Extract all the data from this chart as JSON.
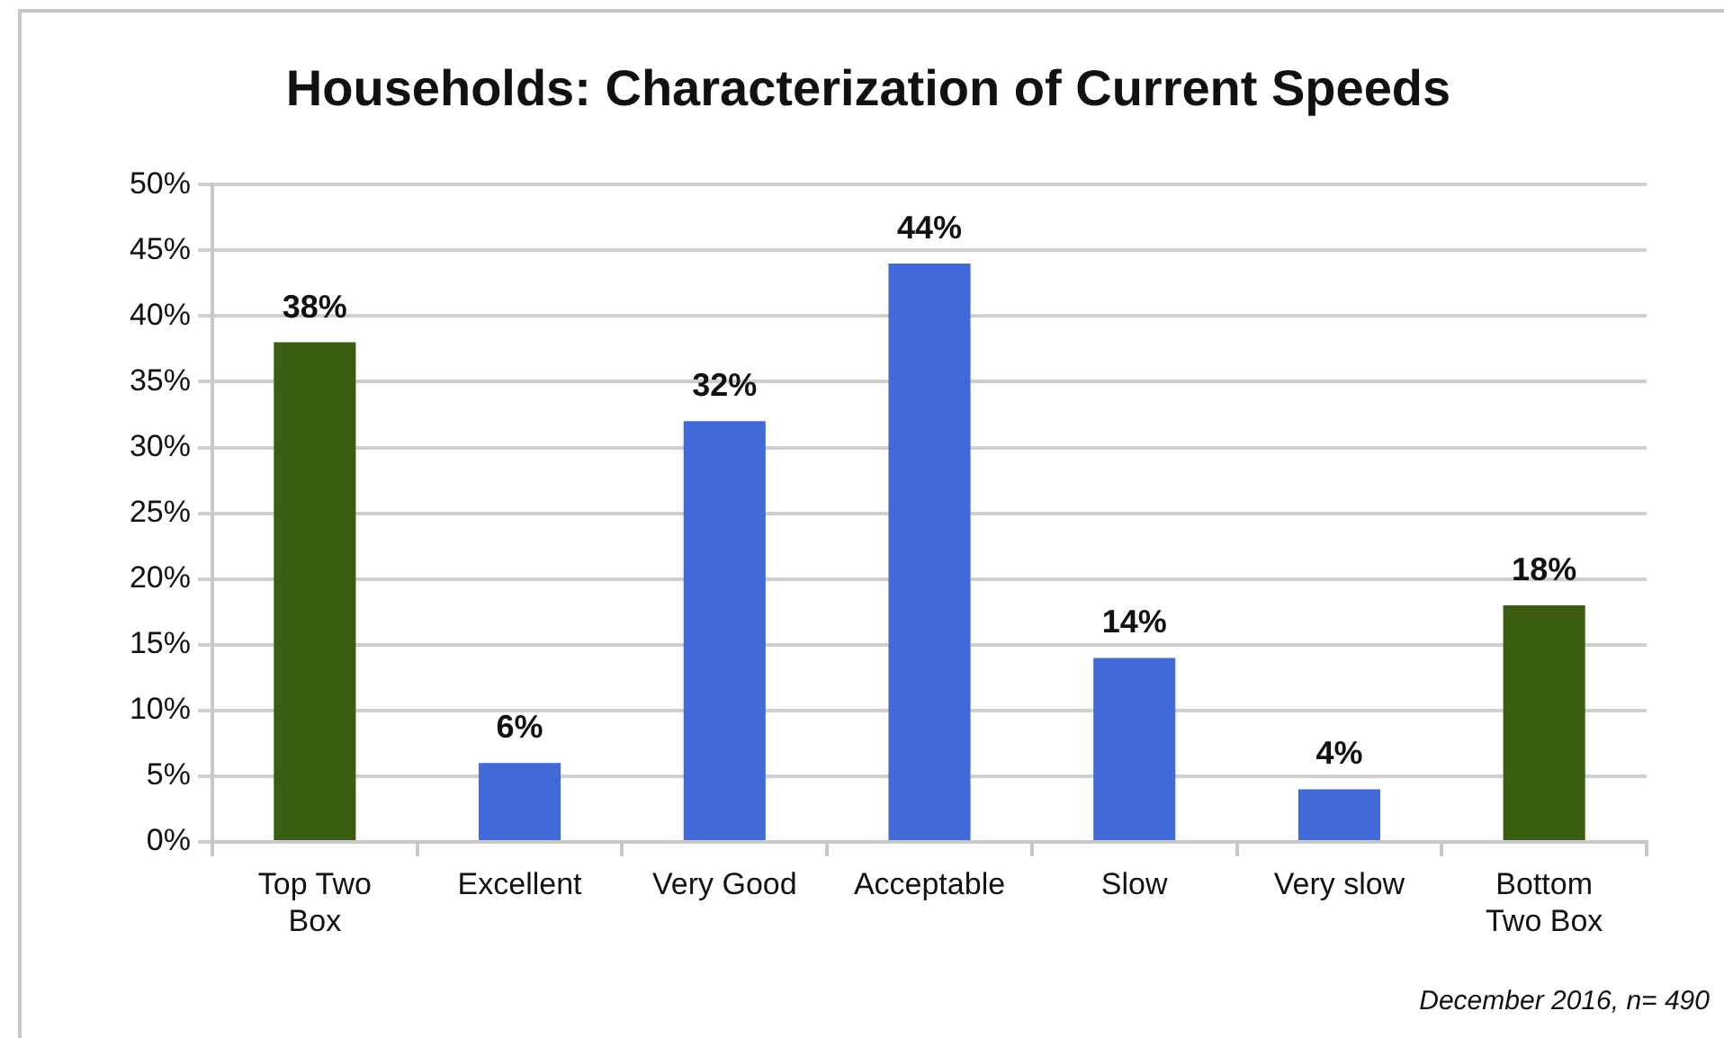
{
  "chart_data": {
    "type": "bar",
    "title": "Households: Characterization of Current Speeds",
    "categories": [
      "Top Two Box",
      "Excellent",
      "Very Good",
      "Acceptable",
      "Slow",
      "Very slow",
      "Bottom Two Box"
    ],
    "values": [
      38,
      6,
      32,
      44,
      14,
      4,
      18
    ],
    "colors": [
      "#3b5e13",
      "#4169d8",
      "#4169d8",
      "#4169d8",
      "#4169d8",
      "#4169d8",
      "#3b5e13"
    ],
    "value_labels": [
      "38%",
      "6%",
      "32%",
      "44%",
      "14%",
      "4%",
      "18%"
    ],
    "ylim": [
      0,
      50
    ],
    "yticks": [
      {
        "value": 0,
        "label": "0%"
      },
      {
        "value": 5,
        "label": "5%"
      },
      {
        "value": 10,
        "label": "10%"
      },
      {
        "value": 15,
        "label": "15%"
      },
      {
        "value": 20,
        "label": "20%"
      },
      {
        "value": 25,
        "label": "25%"
      },
      {
        "value": 30,
        "label": "30%"
      },
      {
        "value": 35,
        "label": "35%"
      },
      {
        "value": 40,
        "label": "40%"
      },
      {
        "value": 45,
        "label": "45%"
      },
      {
        "value": 50,
        "label": "50%"
      }
    ],
    "grid": "y",
    "annotations": [
      "December 2016, n= 490"
    ]
  }
}
